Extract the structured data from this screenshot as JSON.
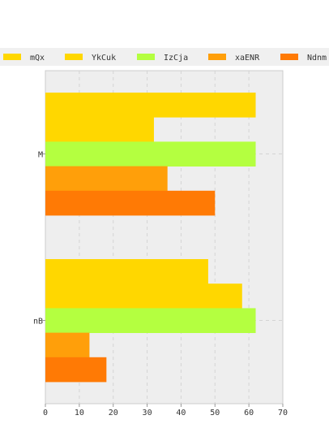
{
  "chart_data": {
    "type": "bar",
    "orientation": "horizontal",
    "categories": [
      "M",
      "nB"
    ],
    "series": [
      {
        "name": "mQx",
        "color": "#ffd700",
        "values": [
          62,
          48
        ]
      },
      {
        "name": "YkCuk",
        "color": "#ffd700",
        "values": [
          32,
          58
        ]
      },
      {
        "name": "IzCja",
        "color": "#b4ff40",
        "values": [
          62,
          62
        ]
      },
      {
        "name": "xaENR",
        "color": "#ff9f0a",
        "values": [
          36,
          13
        ]
      },
      {
        "name": "Ndnm",
        "color": "#ff7a05",
        "values": [
          50,
          18
        ]
      }
    ],
    "xlim": [
      0,
      70
    ],
    "x_ticks": [
      "0",
      "10",
      "20",
      "30",
      "40",
      "50",
      "60",
      "70"
    ],
    "grid": true,
    "legend_position": "top"
  }
}
